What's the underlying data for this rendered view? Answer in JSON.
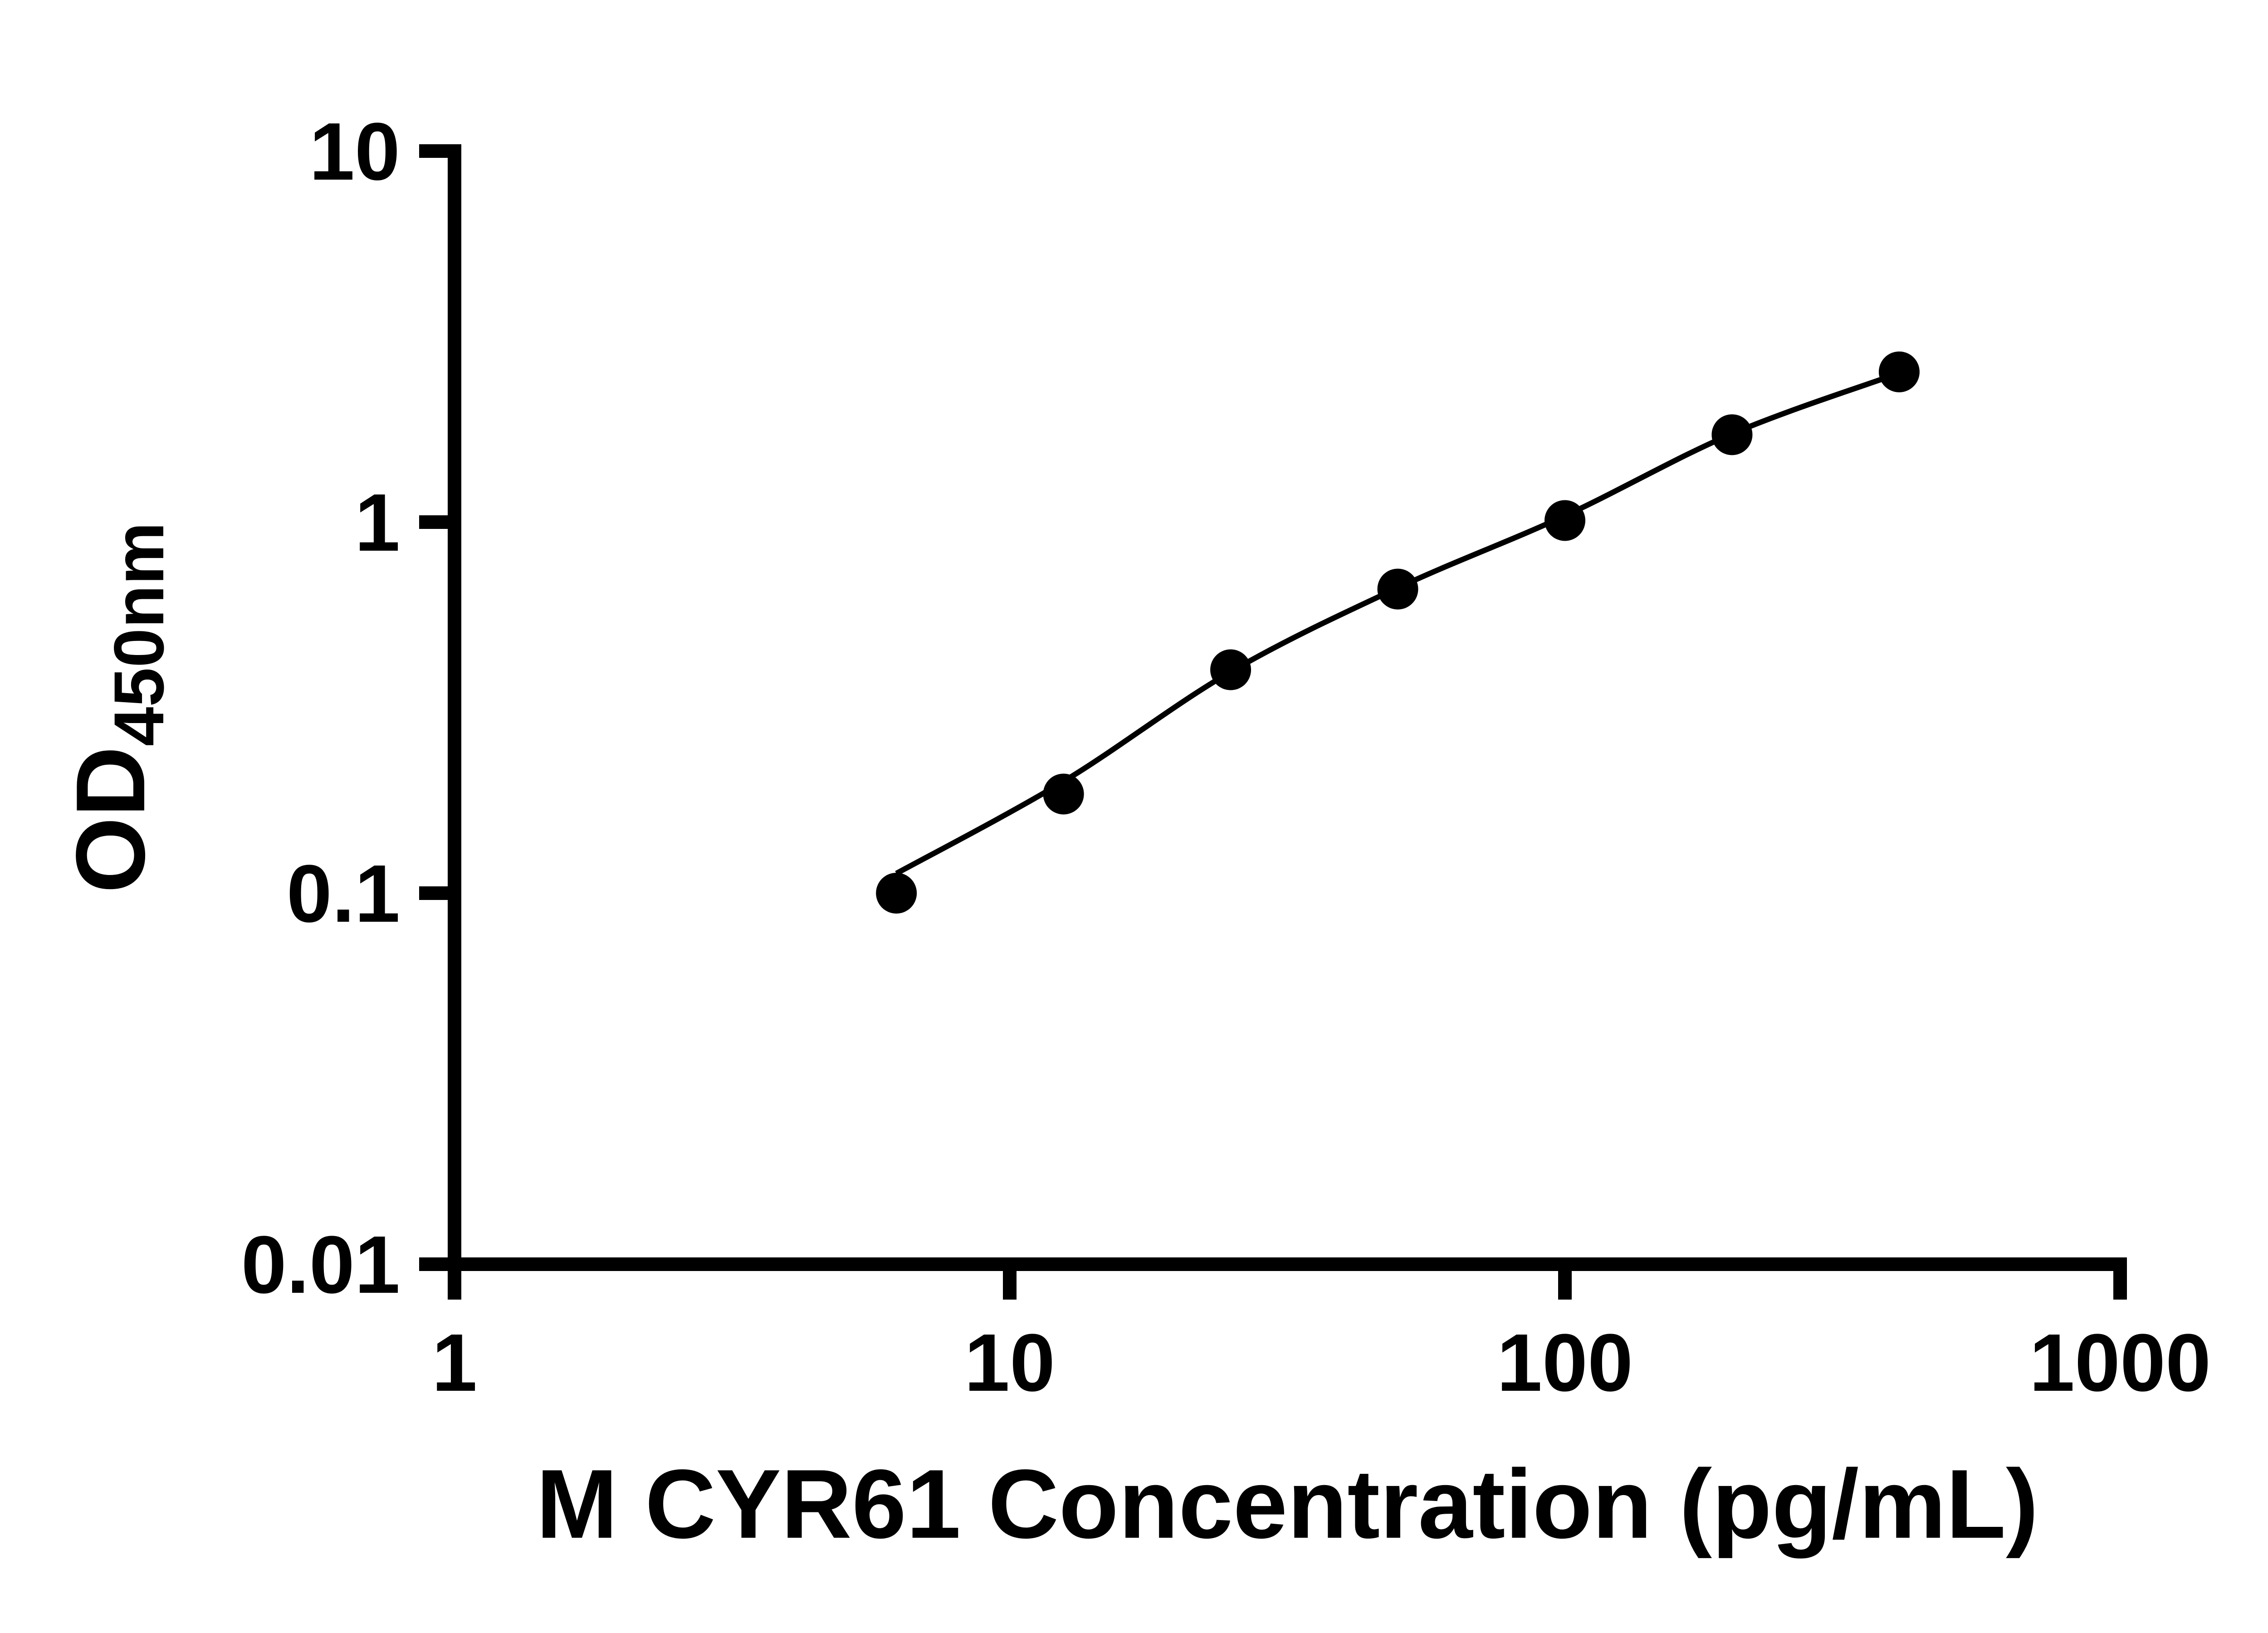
{
  "figure": {
    "background": "#ffffff",
    "ink_color": "#000000"
  },
  "chart_data": {
    "type": "scatter",
    "title": "",
    "xlabel": "M CYR61 Concentration (pg/mL)",
    "ylabel_main": "OD",
    "ylabel_subscript": "450nm",
    "x_scale": "log10",
    "y_scale": "log10",
    "xlim": [
      1,
      1000
    ],
    "ylim": [
      0.01,
      10
    ],
    "x_ticks": [
      1,
      10,
      100,
      1000
    ],
    "y_ticks": [
      10,
      1,
      0.1,
      0.01
    ],
    "x_tick_labels": [
      "1",
      "10",
      "100",
      "1000"
    ],
    "y_tick_labels": [
      "10",
      "1",
      "0.1",
      "0.01"
    ],
    "grid": false,
    "legend": false,
    "marker": "circle",
    "marker_color": "#000000",
    "line_color": "#000000",
    "series": [
      {
        "x": [
          6.25,
          12.5,
          25,
          50,
          100,
          200,
          400
        ],
        "y": [
          0.1,
          0.185,
          0.4,
          0.66,
          1.01,
          1.72,
          2.54
        ]
      }
    ],
    "fit_curve": {
      "x": [
        6.25,
        12.5,
        25,
        50,
        100,
        200,
        400
      ],
      "y": [
        0.113,
        0.2,
        0.395,
        0.665,
        1.04,
        1.73,
        2.52
      ]
    }
  }
}
